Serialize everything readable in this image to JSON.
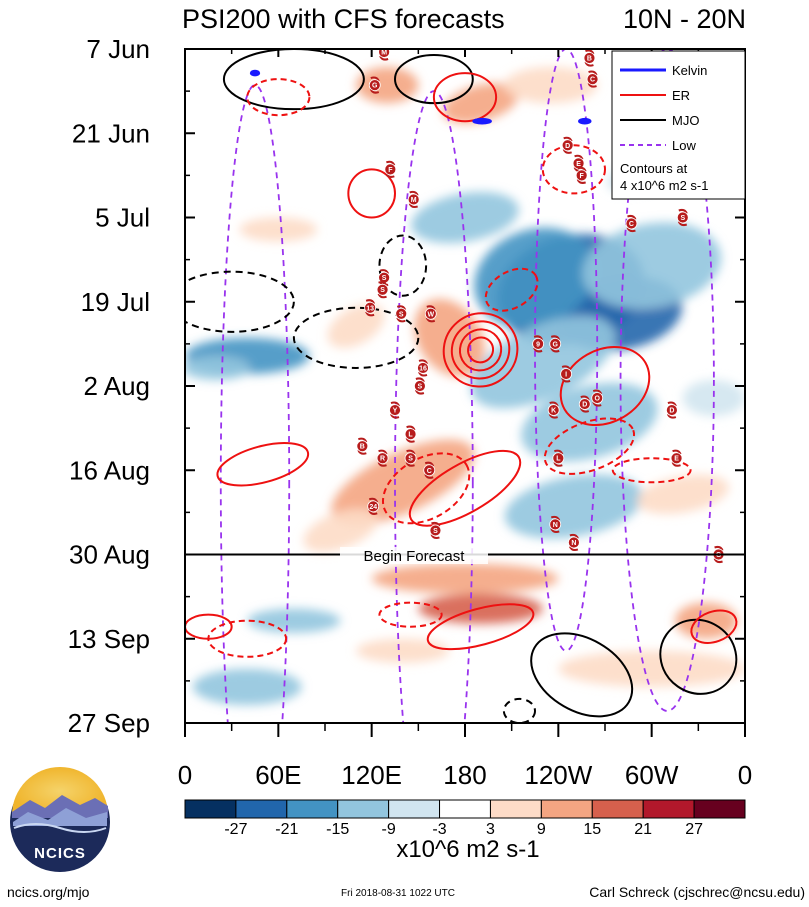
{
  "chart_data": {
    "type": "heatmap",
    "title": "PSI200 with CFS forecasts",
    "region": "10N - 20N",
    "x_ticks": [
      "0",
      "60E",
      "120E",
      "180",
      "120W",
      "60W",
      "0"
    ],
    "x_tick_lon": [
      0,
      60,
      120,
      180,
      240,
      300,
      360
    ],
    "xlim": [
      0,
      360
    ],
    "y_ticks": [
      "7 Jun",
      "21 Jun",
      "5 Jul",
      "19 Jul",
      "2 Aug",
      "16 Aug",
      "30 Aug",
      "13 Sep",
      "27 Sep"
    ],
    "y_tick_day": [
      0,
      14,
      28,
      42,
      56,
      70,
      84,
      98,
      112
    ],
    "ylim": [
      0,
      112
    ],
    "forecast_begin_day": 84,
    "forecast_label": "Begin Forecast",
    "colorbar": {
      "levels": [
        "-27",
        "-21",
        "-15",
        "-9",
        "-3",
        "3",
        "9",
        "15",
        "21",
        "27"
      ],
      "colors": [
        "#053061",
        "#2166ac",
        "#4393c3",
        "#92c5de",
        "#d1e5f0",
        "#ffffff",
        "#fddbc7",
        "#f4a582",
        "#d6604d",
        "#b2182b",
        "#67001f"
      ],
      "units": "x10^6 m2 s-1"
    },
    "legend": {
      "entries": [
        {
          "name": "Kelvin",
          "color": "#1a1aff",
          "dash": "solid"
        },
        {
          "name": "ER",
          "color": "#ee1111",
          "dash": "solid"
        },
        {
          "name": "MJO",
          "color": "#000000",
          "dash": "solid"
        },
        {
          "name": "Low",
          "color": "#9933ee",
          "dash": "dashed"
        }
      ],
      "note_line1": "Contours at",
      "note_line2": "4 x10^6 m2 s-1",
      "location": "top-right"
    },
    "anomaly_blobs": [
      {
        "lon": 248,
        "day": 40,
        "rlon": 48,
        "rday": 9,
        "v": -26,
        "rot": -15
      },
      {
        "lon": 280,
        "day": 44,
        "rlon": 40,
        "rday": 6,
        "v": -24,
        "rot": -10
      },
      {
        "lon": 225,
        "day": 38,
        "rlon": 40,
        "rday": 8,
        "v": -16,
        "rot": -20
      },
      {
        "lon": 300,
        "day": 36,
        "rlon": 45,
        "rday": 7,
        "v": -14,
        "rot": -10
      },
      {
        "lon": 230,
        "day": 52,
        "rlon": 50,
        "rday": 6,
        "v": -14,
        "rot": -25
      },
      {
        "lon": 260,
        "day": 62,
        "rlon": 45,
        "rday": 6,
        "v": -12,
        "rot": -15
      },
      {
        "lon": 250,
        "day": 76,
        "rlon": 45,
        "rday": 5,
        "v": -13,
        "rot": -10
      },
      {
        "lon": 180,
        "day": 28,
        "rlon": 35,
        "rday": 4,
        "v": -9,
        "rot": -10
      },
      {
        "lon": 40,
        "day": 51,
        "rlon": 40,
        "rday": 3,
        "v": -15,
        "rot": 0
      },
      {
        "lon": 20,
        "day": 53,
        "rlon": 22,
        "rday": 2,
        "v": -12,
        "rot": 0
      },
      {
        "lon": 70,
        "day": 95,
        "rlon": 30,
        "rday": 2,
        "v": -10,
        "rot": 0
      },
      {
        "lon": 40,
        "day": 106,
        "rlon": 35,
        "rday": 3,
        "v": -9,
        "rot": 0
      },
      {
        "lon": 340,
        "day": 58,
        "rlon": 20,
        "rday": 3,
        "v": -8,
        "rot": 0
      },
      {
        "lon": 300,
        "day": 20,
        "rlon": 30,
        "rday": 3,
        "v": -8,
        "rot": -20
      },
      {
        "lon": 190,
        "day": 9,
        "rlon": 25,
        "rday": 3,
        "v": 12,
        "rot": -15
      },
      {
        "lon": 130,
        "day": 6,
        "rlon": 20,
        "rday": 3,
        "v": 10,
        "rot": 0
      },
      {
        "lon": 235,
        "day": 6,
        "rlon": 30,
        "rday": 3,
        "v": 8,
        "rot": 0
      },
      {
        "lon": 170,
        "day": 48,
        "rlon": 20,
        "rday": 7,
        "v": 10,
        "rot": -35
      },
      {
        "lon": 140,
        "day": 72,
        "rlon": 50,
        "rday": 5,
        "v": 12,
        "rot": -25
      },
      {
        "lon": 180,
        "day": 88,
        "rlon": 60,
        "rday": 2.5,
        "v": 14,
        "rot": 0
      },
      {
        "lon": 190,
        "day": 93,
        "rlon": 40,
        "rday": 2.5,
        "v": 16,
        "rot": 0
      },
      {
        "lon": 140,
        "day": 100,
        "rlon": 30,
        "rday": 2,
        "v": 8,
        "rot": 0
      },
      {
        "lon": 300,
        "day": 103,
        "rlon": 60,
        "rday": 3,
        "v": 9,
        "rot": 0
      },
      {
        "lon": 335,
        "day": 95,
        "rlon": 20,
        "rday": 3,
        "v": 12,
        "rot": 0
      },
      {
        "lon": 100,
        "day": 80,
        "rlon": 25,
        "rday": 3,
        "v": 9,
        "rot": -20
      },
      {
        "lon": 320,
        "day": 74,
        "rlon": 30,
        "rday": 3,
        "v": 9,
        "rot": -10
      },
      {
        "lon": 60,
        "day": 30,
        "rlon": 25,
        "rday": 2,
        "v": 7,
        "rot": 0
      },
      {
        "lon": 110,
        "day": 46,
        "rlon": 20,
        "rday": 3,
        "v": 7,
        "rot": -30
      }
    ],
    "contours": {
      "er": [
        {
          "lon": 190,
          "day": 50,
          "rlon": 24,
          "rday": 6,
          "rot": -40,
          "dash": false,
          "rings": 4
        },
        {
          "lon": 270,
          "day": 56,
          "rlon": 30,
          "rday": 6,
          "rot": -30,
          "dash": false,
          "rings": 1
        },
        {
          "lon": 180,
          "day": 73,
          "rlon": 40,
          "rday": 4,
          "rot": -30,
          "dash": false,
          "rings": 1
        },
        {
          "lon": 190,
          "day": 96,
          "rlon": 35,
          "rday": 3,
          "rot": -15,
          "dash": false,
          "rings": 1
        },
        {
          "lon": 340,
          "day": 96,
          "rlon": 15,
          "rday": 2.5,
          "rot": -20,
          "dash": false,
          "rings": 1
        },
        {
          "lon": 15,
          "day": 96,
          "rlon": 15,
          "rday": 2,
          "rot": 0,
          "dash": false,
          "rings": 1
        },
        {
          "lon": 50,
          "day": 69,
          "rlon": 30,
          "rday": 3,
          "rot": -15,
          "dash": false,
          "rings": 1
        },
        {
          "lon": 180,
          "day": 8,
          "rlon": 20,
          "rday": 4,
          "rot": 0,
          "dash": false,
          "rings": 1
        },
        {
          "lon": 120,
          "day": 24,
          "rlon": 15,
          "rday": 4,
          "rot": 0,
          "dash": false,
          "rings": 1
        },
        {
          "lon": 60,
          "day": 8,
          "rlon": 20,
          "rday": 3,
          "rot": 0,
          "dash": true,
          "rings": 1
        },
        {
          "lon": 155,
          "day": 73,
          "rlon": 30,
          "rday": 5,
          "rot": -30,
          "dash": true,
          "rings": 1
        },
        {
          "lon": 260,
          "day": 66,
          "rlon": 30,
          "rday": 4,
          "rot": -20,
          "dash": true,
          "rings": 1
        },
        {
          "lon": 40,
          "day": 98,
          "rlon": 25,
          "rday": 3,
          "rot": 0,
          "dash": true,
          "rings": 1
        },
        {
          "lon": 145,
          "day": 94,
          "rlon": 20,
          "rday": 2,
          "rot": 0,
          "dash": true,
          "rings": 1
        },
        {
          "lon": 250,
          "day": 20,
          "rlon": 20,
          "rday": 4,
          "rot": 0,
          "dash": true,
          "rings": 1
        },
        {
          "lon": 300,
          "day": 70,
          "rlon": 25,
          "rday": 2,
          "rot": 0,
          "dash": true,
          "rings": 1
        },
        {
          "lon": 210,
          "day": 40,
          "rlon": 18,
          "rday": 3,
          "rot": -30,
          "dash": true,
          "rings": 1
        }
      ],
      "mjo": [
        {
          "lon": 70,
          "day": 5,
          "rlon": 45,
          "rday": 5,
          "rot": 0,
          "dash": false
        },
        {
          "lon": 160,
          "day": 5,
          "rlon": 25,
          "rday": 4,
          "rot": 0,
          "dash": false
        },
        {
          "lon": 255,
          "day": 104,
          "rlon": 35,
          "rday": 6,
          "rot": 30,
          "dash": false
        },
        {
          "lon": 330,
          "day": 101,
          "rlon": 25,
          "rday": 6,
          "rot": 35,
          "dash": false
        },
        {
          "lon": 30,
          "day": 42,
          "rlon": 40,
          "rday": 5,
          "rot": 0,
          "dash": true
        },
        {
          "lon": 110,
          "day": 48,
          "rlon": 40,
          "rday": 5,
          "rot": 0,
          "dash": true
        },
        {
          "lon": 140,
          "day": 36,
          "rlon": 15,
          "rday": 5,
          "rot": 0,
          "dash": true
        },
        {
          "lon": 215,
          "day": 110,
          "rlon": 10,
          "rday": 2,
          "rot": 0,
          "dash": true
        }
      ],
      "low": [
        {
          "lon": 45,
          "day": 72,
          "rlon": 22,
          "rday": 66,
          "rot": 0
        },
        {
          "lon": 160,
          "day": 72,
          "rlon": 25,
          "rday": 65,
          "rot": 0
        },
        {
          "lon": 245,
          "day": 50,
          "rlon": 20,
          "rday": 50,
          "rot": 0
        },
        {
          "lon": 310,
          "day": 55,
          "rlon": 30,
          "rday": 55,
          "rot": 0
        }
      ],
      "kelvin": [
        {
          "lon": 191,
          "day": 12,
          "rlon": 6,
          "rday": 0.3,
          "rot": 0
        },
        {
          "lon": 257,
          "day": 12,
          "rlon": 4,
          "rday": 0.3,
          "rot": 0
        },
        {
          "lon": 45,
          "day": 4,
          "rlon": 3,
          "rday": 0.3,
          "rot": 0
        }
      ]
    },
    "storms": [
      {
        "label": "M",
        "lon": 128,
        "day": 0.5
      },
      {
        "label": "G",
        "lon": 122,
        "day": 6
      },
      {
        "label": "F",
        "lon": 132,
        "day": 20
      },
      {
        "label": "M",
        "lon": 147,
        "day": 25
      },
      {
        "label": "S",
        "lon": 128,
        "day": 38
      },
      {
        "label": "S",
        "lon": 127,
        "day": 40
      },
      {
        "label": "13",
        "lon": 119,
        "day": 43
      },
      {
        "label": "S",
        "lon": 139,
        "day": 44
      },
      {
        "label": "W",
        "lon": 158,
        "day": 44
      },
      {
        "label": "16",
        "lon": 153,
        "day": 53
      },
      {
        "label": "S",
        "lon": 151,
        "day": 56
      },
      {
        "label": "Y",
        "lon": 135,
        "day": 60
      },
      {
        "label": "L",
        "lon": 145,
        "day": 64
      },
      {
        "label": "B",
        "lon": 114,
        "day": 66
      },
      {
        "label": "R",
        "lon": 127,
        "day": 68
      },
      {
        "label": "S",
        "lon": 145,
        "day": 68
      },
      {
        "label": "C",
        "lon": 157,
        "day": 70
      },
      {
        "label": "24",
        "lon": 121,
        "day": 76
      },
      {
        "label": "S",
        "lon": 161,
        "day": 80
      },
      {
        "label": "B",
        "lon": 260,
        "day": 1.5
      },
      {
        "label": "C",
        "lon": 262,
        "day": 5
      },
      {
        "label": "D",
        "lon": 246,
        "day": 16
      },
      {
        "label": "E",
        "lon": 253,
        "day": 19
      },
      {
        "label": "F",
        "lon": 255,
        "day": 21
      },
      {
        "label": "C",
        "lon": 287,
        "day": 29
      },
      {
        "label": "S",
        "lon": 320,
        "day": 28
      },
      {
        "label": "9",
        "lon": 227,
        "day": 49
      },
      {
        "label": "G",
        "lon": 238,
        "day": 49
      },
      {
        "label": "I",
        "lon": 245,
        "day": 54
      },
      {
        "label": "D",
        "lon": 257,
        "day": 59
      },
      {
        "label": "O",
        "lon": 265,
        "day": 58
      },
      {
        "label": "K",
        "lon": 237,
        "day": 60
      },
      {
        "label": "D",
        "lon": 313,
        "day": 60
      },
      {
        "label": "L",
        "lon": 240,
        "day": 68
      },
      {
        "label": "E",
        "lon": 316,
        "day": 68
      },
      {
        "label": "N",
        "lon": 238,
        "day": 79
      },
      {
        "label": "N",
        "lon": 250,
        "day": 82
      },
      {
        "label": "G",
        "lon": 343,
        "day": 84
      }
    ]
  },
  "logo_text": "NCICS",
  "footer_left": "ncics.org/mjo",
  "footer_center": "Fri 2018-08-31 1022 UTC",
  "footer_right": "Carl Schreck (cjschrec@ncsu.edu)"
}
